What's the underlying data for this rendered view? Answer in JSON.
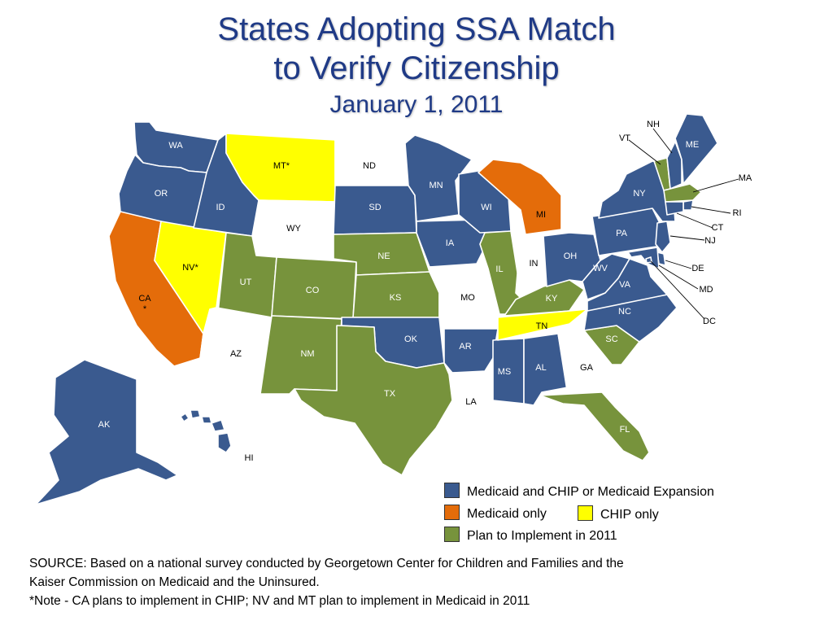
{
  "title": {
    "line1": "States Adopting SSA Match",
    "line2": "to Verify Citizenship",
    "date": "January 1, 2011"
  },
  "colors": {
    "medicaid_chip": "#3a5a8f",
    "medicaid_only": "#e46c0a",
    "chip_only": "#ffff00",
    "plan": "#77933c",
    "none": "#ffffff"
  },
  "states": {
    "WA": {
      "label": "WA",
      "status": "medicaid_chip"
    },
    "OR": {
      "label": "OR",
      "status": "medicaid_chip"
    },
    "CA": {
      "label": "CA",
      "note": "*",
      "status": "medicaid_only"
    },
    "NV": {
      "label": "NV*",
      "status": "chip_only"
    },
    "ID": {
      "label": "ID",
      "status": "medicaid_chip"
    },
    "MT": {
      "label": "MT*",
      "status": "chip_only"
    },
    "WY": {
      "label": "WY",
      "status": "none"
    },
    "UT": {
      "label": "UT",
      "status": "plan"
    },
    "AZ": {
      "label": "AZ",
      "status": "none"
    },
    "CO": {
      "label": "CO",
      "status": "plan"
    },
    "NM": {
      "label": "NM",
      "status": "plan"
    },
    "ND": {
      "label": "ND",
      "status": "none"
    },
    "SD": {
      "label": "SD",
      "status": "medicaid_chip"
    },
    "NE": {
      "label": "NE",
      "status": "plan"
    },
    "KS": {
      "label": "KS",
      "status": "plan"
    },
    "OK": {
      "label": "OK",
      "status": "medicaid_chip"
    },
    "TX": {
      "label": "TX",
      "status": "plan"
    },
    "MN": {
      "label": "MN",
      "status": "medicaid_chip"
    },
    "IA": {
      "label": "IA",
      "status": "medicaid_chip"
    },
    "MO": {
      "label": "MO",
      "status": "none"
    },
    "AR": {
      "label": "AR",
      "status": "medicaid_chip"
    },
    "LA": {
      "label": "LA",
      "status": "none"
    },
    "WI": {
      "label": "WI",
      "status": "medicaid_chip"
    },
    "IL": {
      "label": "IL",
      "status": "plan"
    },
    "MS": {
      "label": "MS",
      "status": "medicaid_chip"
    },
    "MI": {
      "label": "MI",
      "status": "medicaid_only"
    },
    "IN": {
      "label": "IN",
      "status": "none"
    },
    "KY": {
      "label": "KY",
      "status": "plan"
    },
    "TN": {
      "label": "TN",
      "status": "chip_only"
    },
    "AL": {
      "label": "AL",
      "status": "medicaid_chip"
    },
    "GA": {
      "label": "GA",
      "status": "none"
    },
    "FL": {
      "label": "FL",
      "status": "plan"
    },
    "SC": {
      "label": "SC",
      "status": "plan"
    },
    "NC": {
      "label": "NC",
      "status": "medicaid_chip"
    },
    "OH": {
      "label": "OH",
      "status": "medicaid_chip"
    },
    "WV": {
      "label": "WV",
      "status": "medicaid_chip"
    },
    "VA": {
      "label": "VA",
      "status": "medicaid_chip"
    },
    "PA": {
      "label": "PA",
      "status": "medicaid_chip"
    },
    "NY": {
      "label": "NY",
      "status": "medicaid_chip"
    },
    "VT": {
      "label": "VT",
      "status": "plan"
    },
    "NH": {
      "label": "NH",
      "status": "medicaid_chip"
    },
    "ME": {
      "label": "ME",
      "status": "medicaid_chip"
    },
    "MA": {
      "label": "MA",
      "status": "plan"
    },
    "RI": {
      "label": "RI",
      "status": "medicaid_chip"
    },
    "CT": {
      "label": "CT",
      "status": "medicaid_chip"
    },
    "NJ": {
      "label": "NJ",
      "status": "medicaid_chip"
    },
    "DE": {
      "label": "DE",
      "status": "medicaid_chip"
    },
    "MD": {
      "label": "MD",
      "status": "medicaid_chip"
    },
    "DC": {
      "label": "DC",
      "status": "medicaid_chip"
    },
    "AK": {
      "label": "AK",
      "status": "medicaid_chip"
    },
    "HI": {
      "label": "HI",
      "status": "medicaid_chip"
    }
  },
  "legend": {
    "medicaid_chip": "Medicaid and CHIP or Medicaid Expansion",
    "medicaid_only": "Medicaid only",
    "chip_only": "CHIP only",
    "plan": "Plan to Implement in 2011"
  },
  "source": {
    "line1": "SOURCE: Based on a national survey conducted by Georgetown Center for Children and Families and the",
    "line2": "Kaiser Commission on Medicaid and the Uninsured.",
    "note": "*Note - CA plans to implement in CHIP; NV and MT plan to implement in Medicaid in 2011"
  }
}
